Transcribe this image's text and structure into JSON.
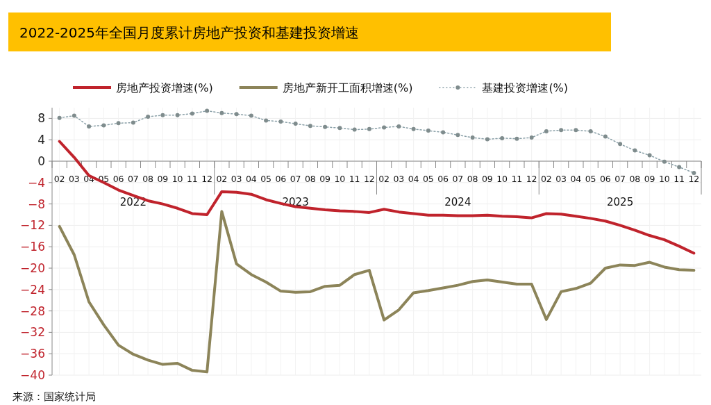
{
  "chart_data": {
    "type": "line",
    "title": "2022-2025年全国月度累计房地产投资和基建投资增速",
    "categories": [
      "02",
      "03",
      "04",
      "05",
      "06",
      "07",
      "08",
      "09",
      "10",
      "11",
      "12",
      "02",
      "03",
      "04",
      "05",
      "06",
      "07",
      "08",
      "09",
      "10",
      "11",
      "12",
      "02",
      "03",
      "04",
      "05",
      "06",
      "07",
      "08",
      "09",
      "10",
      "11",
      "12",
      "02",
      "03",
      "04",
      "05",
      "06",
      "07",
      "08",
      "09",
      "10",
      "11",
      "12"
    ],
    "series": [
      {
        "name": "房地产投资增速(%)",
        "color": "#c0232c",
        "values": [
          3.7,
          0.7,
          -2.7,
          -4.0,
          -5.4,
          -6.4,
          -7.4,
          -8.0,
          -8.8,
          -9.8,
          -10.0,
          -5.7,
          -5.8,
          -6.2,
          -7.2,
          -7.9,
          -8.5,
          -8.8,
          -9.1,
          -9.3,
          -9.4,
          -9.6,
          -9.0,
          -9.5,
          -9.8,
          -10.1,
          -10.1,
          -10.2,
          -10.2,
          -10.1,
          -10.3,
          -10.4,
          -10.6,
          -9.8,
          -9.9,
          -10.3,
          -10.7,
          -11.2,
          -12.0,
          -12.9,
          -13.9,
          -14.7,
          -15.9,
          -17.2
        ]
      },
      {
        "name": "房地产新开工面积增速(%)",
        "color": "#8c8459",
        "values": [
          -12.2,
          -17.5,
          -26.3,
          -30.6,
          -34.4,
          -36.1,
          -37.2,
          -38.0,
          -37.8,
          -39.1,
          -39.4,
          -9.4,
          -19.2,
          -21.2,
          -22.6,
          -24.3,
          -24.5,
          -24.4,
          -23.4,
          -23.2,
          -21.2,
          -20.4,
          -29.7,
          -27.8,
          -24.6,
          -24.2,
          -23.7,
          -23.2,
          -22.5,
          -22.2,
          -22.6,
          -23.0,
          -23.0,
          -29.6,
          -24.4,
          -23.8,
          -22.8,
          -20.0,
          -19.4,
          -19.5,
          -18.9,
          -19.8,
          -20.3,
          -20.4
        ]
      },
      {
        "name": "基建投资增速(%)",
        "color": "#8aa0a8",
        "marker": "circle",
        "line_style": "dotted",
        "values": [
          8.1,
          8.5,
          6.5,
          6.7,
          7.1,
          7.2,
          8.3,
          8.6,
          8.6,
          8.9,
          9.4,
          9.0,
          8.8,
          8.5,
          7.6,
          7.4,
          7.0,
          6.6,
          6.4,
          6.2,
          5.9,
          6.0,
          6.3,
          6.5,
          6.0,
          5.7,
          5.4,
          4.9,
          4.4,
          4.1,
          4.3,
          4.2,
          4.4,
          5.6,
          5.8,
          5.8,
          5.6,
          4.6,
          3.2,
          2.0,
          1.1,
          -0.1,
          -1.1,
          -2.2
        ]
      }
    ],
    "ylim": [
      -40,
      10
    ],
    "yticks": [
      8,
      4,
      0,
      -4,
      -8,
      -12,
      -16,
      -20,
      -24,
      -28,
      -32,
      -36,
      -40
    ],
    "grid": true,
    "legend": "top",
    "annotations": [
      "2022",
      "2023",
      "2024",
      "2025",
      "来源：国家统计局"
    ]
  }
}
